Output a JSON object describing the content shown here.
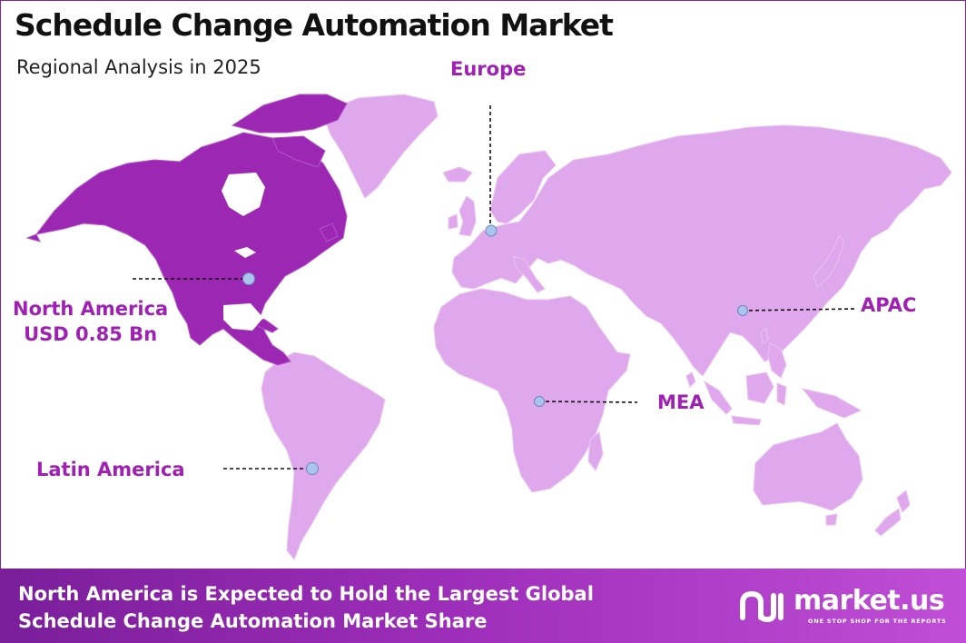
{
  "header": {
    "title": "Schedule Change Automation Market",
    "subtitle": "Regional Analysis in 2025"
  },
  "map": {
    "highlight_color": "#9b27b3",
    "land_color": "#dfa8ec",
    "marker_color": "#a9c4ee",
    "regions": [
      {
        "id": "north-america",
        "name": "North America",
        "value": "USD 0.85 Bn",
        "highlighted": true
      },
      {
        "id": "europe",
        "name": "Europe"
      },
      {
        "id": "apac",
        "name": "APAC"
      },
      {
        "id": "mea",
        "name": "MEA"
      },
      {
        "id": "latin-america",
        "name": "Latin America"
      }
    ]
  },
  "footer": {
    "line1": "North America is Expected to Hold the Largest Global",
    "line2": "Schedule Change Automation Market Share"
  },
  "brand": {
    "name": "market.us",
    "tagline": "ONE STOP SHOP FOR THE REPORTS"
  }
}
